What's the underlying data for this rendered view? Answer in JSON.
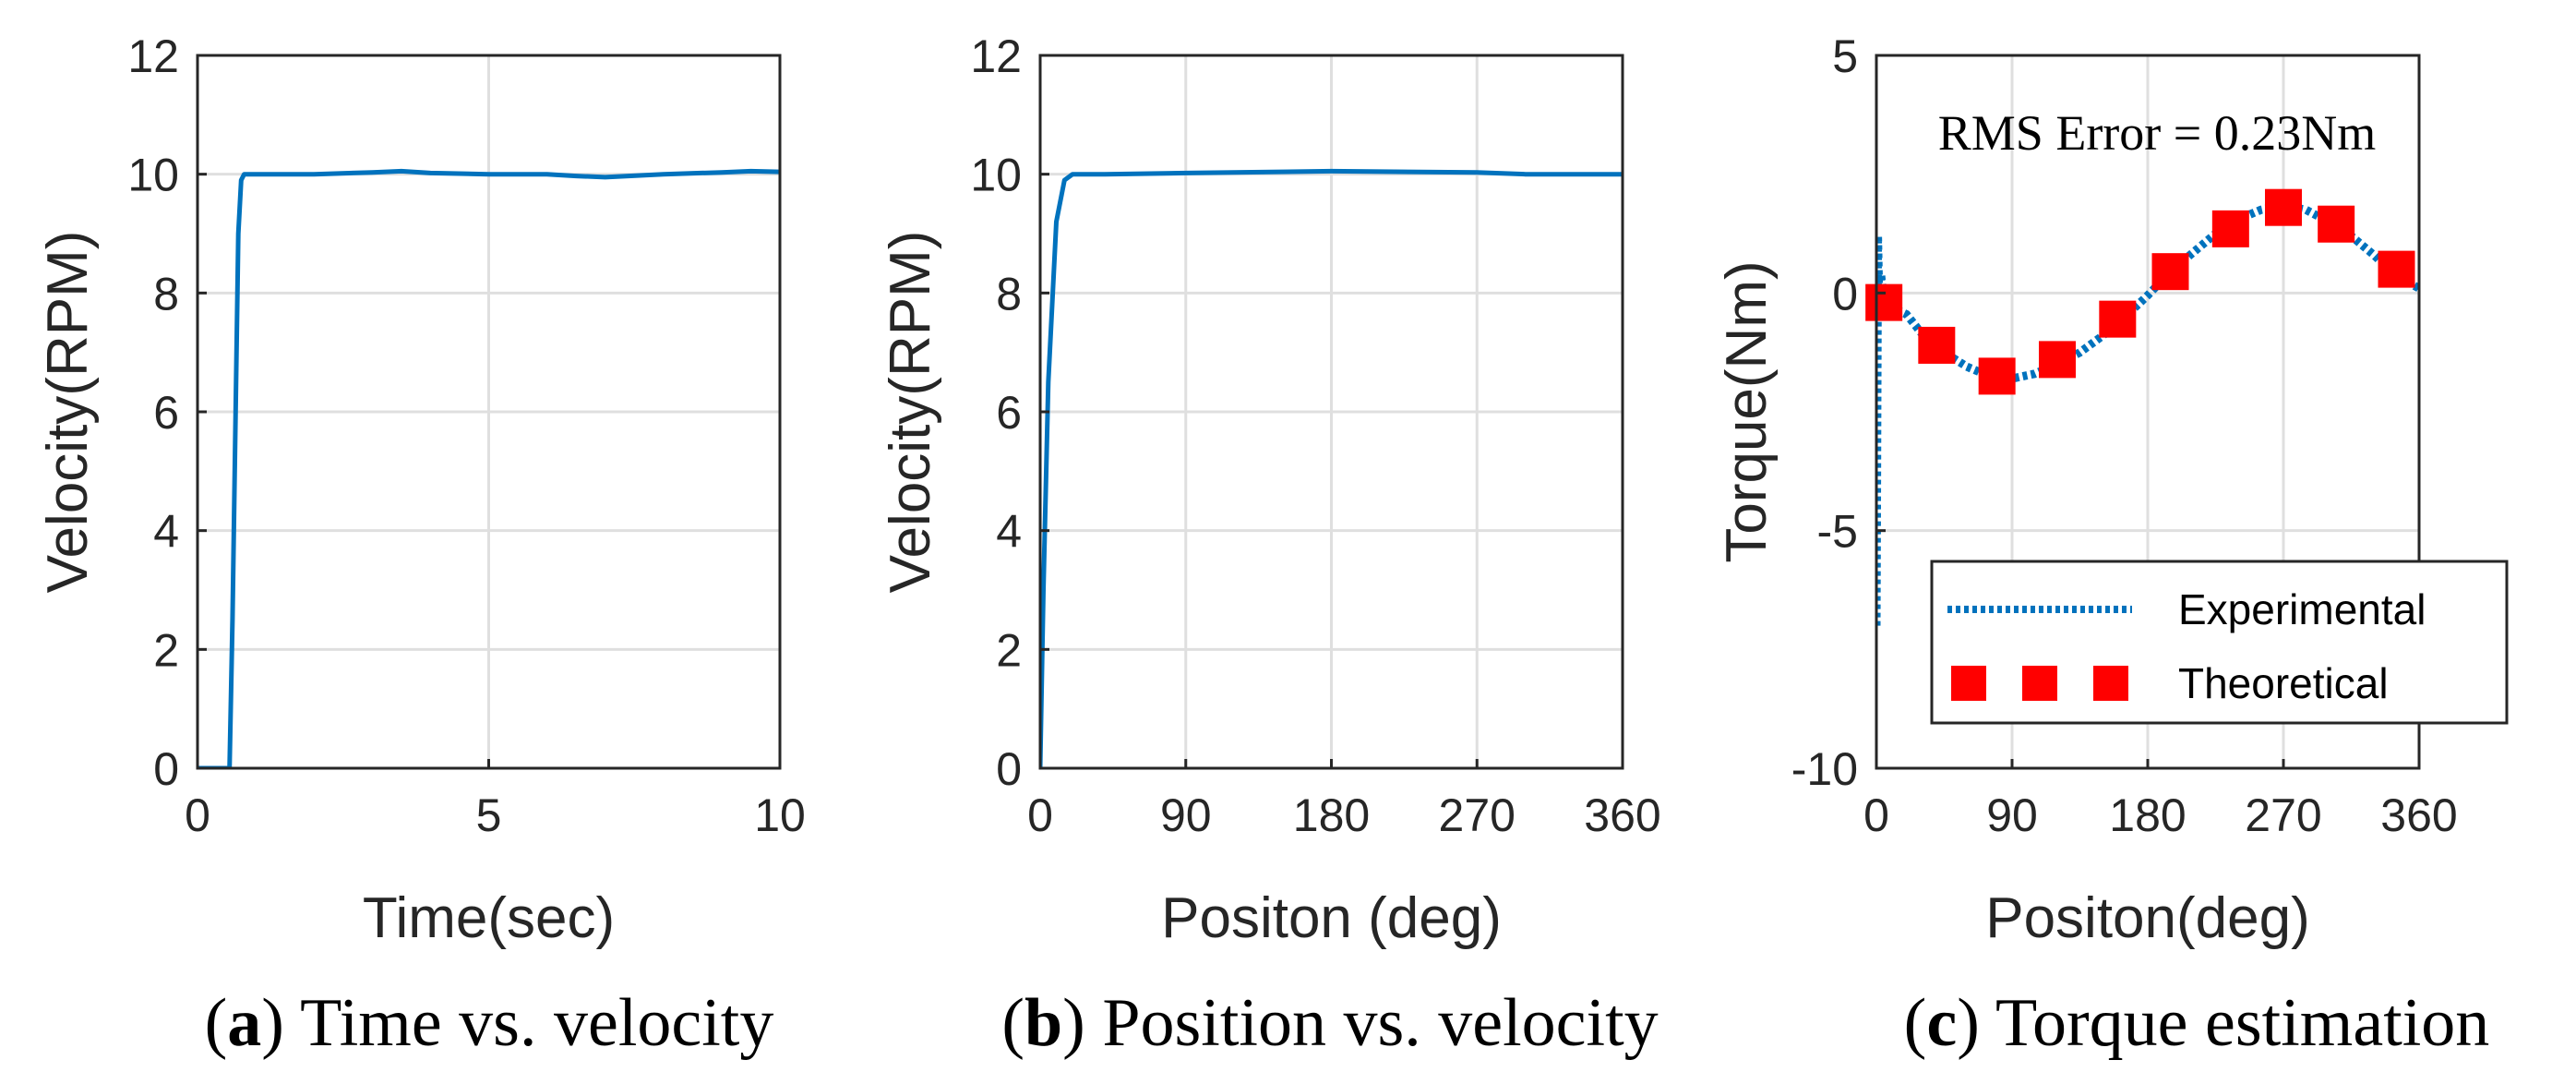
{
  "chart_data": [
    {
      "type": "line",
      "caption_letter": "a",
      "caption_text": "Time vs. velocity",
      "xlabel": "Time(sec)",
      "ylabel": "Velocity(RPM)",
      "xlim": [
        0,
        10
      ],
      "ylim": [
        0,
        12
      ],
      "xticks": [
        0,
        5,
        10
      ],
      "xtick_labels": [
        "0",
        "5",
        "10"
      ],
      "yticks": [
        0,
        2,
        4,
        6,
        8,
        10,
        12
      ],
      "ytick_labels": [
        "0",
        "2",
        "4",
        "6",
        "8",
        "10",
        "12"
      ],
      "grid": true,
      "series": [
        {
          "name": "velocity",
          "color": "#0072BD",
          "x": [
            0,
            0.55,
            0.6,
            0.7,
            0.75,
            0.8,
            1.0,
            2,
            3,
            3.5,
            4,
            5,
            6,
            6.5,
            7,
            8,
            9,
            9.5,
            10
          ],
          "y": [
            0,
            0,
            2.5,
            9.0,
            9.9,
            10.0,
            10.0,
            10.0,
            10.03,
            10.05,
            10.02,
            10.0,
            10.0,
            9.97,
            9.95,
            10.0,
            10.03,
            10.05,
            10.04
          ]
        }
      ]
    },
    {
      "type": "line",
      "caption_letter": "b",
      "caption_text": "Position vs. velocity",
      "xlabel": "Positon (deg)",
      "ylabel": "Velocity(RPM)",
      "xlim": [
        0,
        360
      ],
      "ylim": [
        0,
        12
      ],
      "xticks": [
        0,
        90,
        180,
        270,
        360
      ],
      "xtick_labels": [
        "0",
        "90",
        "180",
        "270",
        "360"
      ],
      "yticks": [
        0,
        2,
        4,
        6,
        8,
        10,
        12
      ],
      "ytick_labels": [
        "0",
        "2",
        "4",
        "6",
        "8",
        "10",
        "12"
      ],
      "grid": true,
      "series": [
        {
          "name": "velocity",
          "color": "#0072BD",
          "x": [
            0,
            2,
            5,
            10,
            15,
            20,
            40,
            90,
            180,
            270,
            300,
            330,
            360
          ],
          "y": [
            0,
            3.0,
            6.5,
            9.2,
            9.9,
            10.0,
            10.0,
            10.02,
            10.05,
            10.03,
            10.0,
            10.0,
            10.0
          ]
        }
      ]
    },
    {
      "type": "line",
      "caption_letter": "c",
      "caption_text": "Torque estimation",
      "xlabel": "Positon(deg)",
      "ylabel": "Torque(Nm)",
      "xlim": [
        0,
        360
      ],
      "ylim": [
        -10,
        5
      ],
      "xticks": [
        0,
        90,
        180,
        270,
        360
      ],
      "xtick_labels": [
        "0",
        "90",
        "180",
        "270",
        "360"
      ],
      "yticks": [
        -10,
        -5,
        0,
        5
      ],
      "ytick_labels": [
        "-10",
        "-5",
        "0",
        "5"
      ],
      "grid": true,
      "annotation": "RMS Error = 0.23Nm",
      "legend_position": "bottom-right",
      "series": [
        {
          "name": "Experimental",
          "style": "dotted",
          "color": "#0072BD",
          "x": [
            0,
            1,
            2,
            3,
            5,
            10,
            20,
            30,
            45,
            60,
            75,
            90,
            105,
            120,
            135,
            150,
            165,
            180,
            195,
            210,
            225,
            240,
            255,
            270,
            285,
            300,
            315,
            330,
            345,
            360
          ],
          "y": [
            -7.0,
            1.2,
            -0.5,
            0.4,
            -0.2,
            -0.3,
            -0.45,
            -0.85,
            -1.25,
            -1.55,
            -1.75,
            -1.8,
            -1.7,
            -1.5,
            -1.25,
            -0.9,
            -0.5,
            -0.05,
            0.45,
            0.85,
            1.25,
            1.55,
            1.75,
            1.85,
            1.75,
            1.5,
            1.2,
            0.8,
            0.35,
            0.1
          ]
        },
        {
          "name": "Theoretical",
          "style": "square-markers",
          "color": "#FF0000",
          "x": [
            5,
            40,
            80,
            120,
            160,
            195,
            235,
            270,
            305,
            345
          ],
          "y": [
            -0.2,
            -1.1,
            -1.75,
            -1.4,
            -0.55,
            0.45,
            1.35,
            1.8,
            1.45,
            0.5
          ]
        }
      ]
    }
  ]
}
